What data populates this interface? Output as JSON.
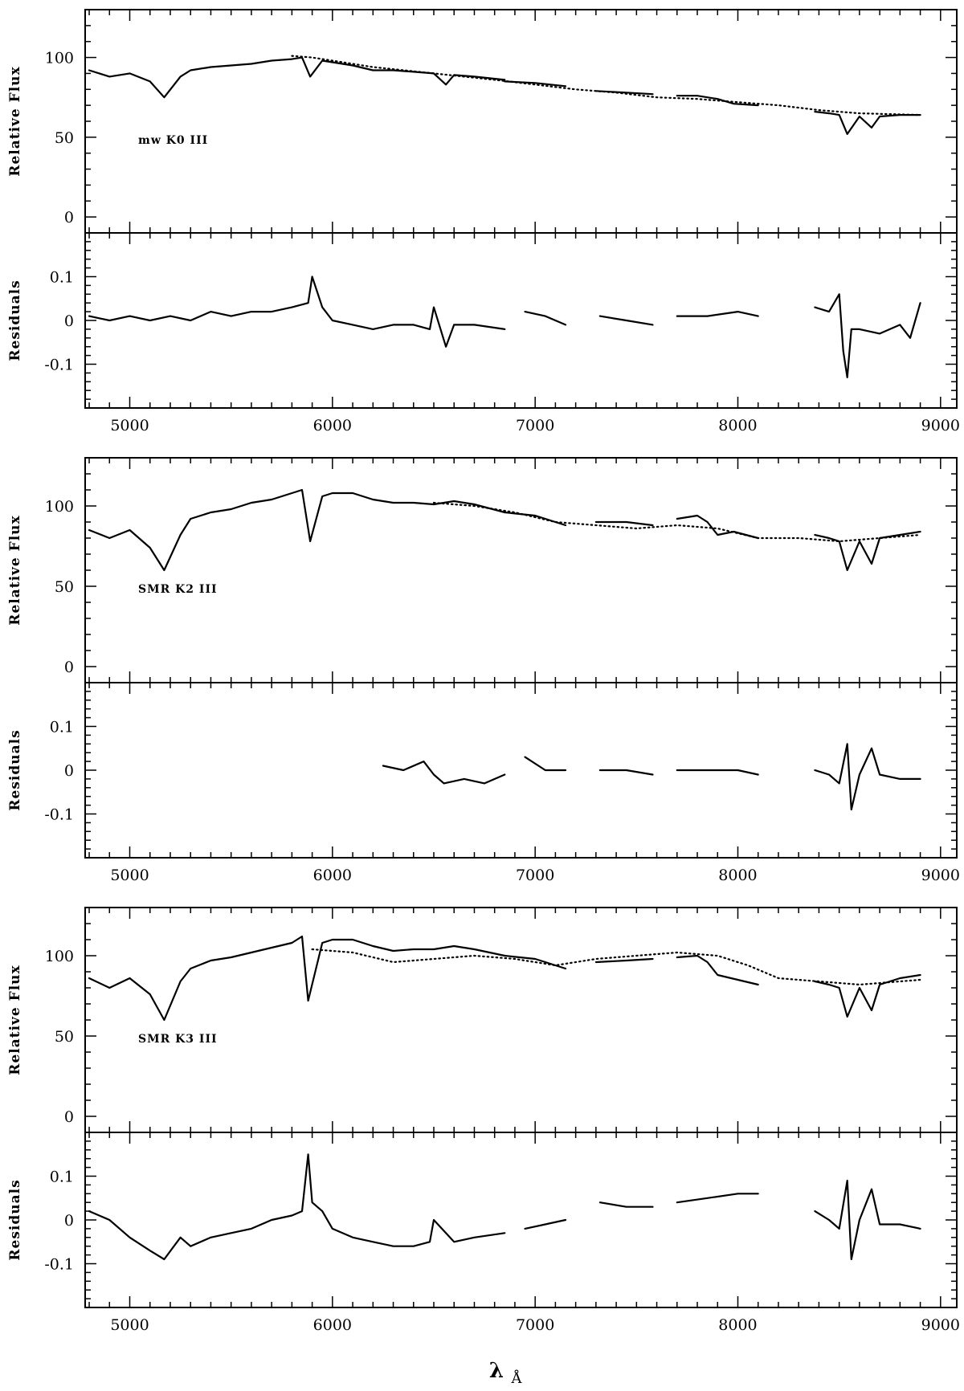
{
  "chart_data": [
    {
      "type": "line",
      "panel": "flux",
      "star_label": "mw K0 III",
      "ylabel": "Relative Flux",
      "xlim": [
        4780,
        9080
      ],
      "ylim": [
        -10,
        130
      ],
      "yticks": [
        "0",
        "50",
        "100"
      ],
      "series": [
        {
          "style": "solid",
          "segments": [
            {
              "x": [
                4800,
                4900,
                5000,
                5100,
                5170,
                5250,
                5300,
                5400,
                5500,
                5600,
                5700,
                5800,
                5850,
                5890,
                5950,
                6000,
                6100,
                6200,
                6300,
                6400,
                6500,
                6560,
                6600,
                6700,
                6850
              ],
              "y": [
                92,
                88,
                90,
                85,
                75,
                88,
                92,
                94,
                95,
                96,
                98,
                99,
                100,
                88,
                98,
                97,
                95,
                92,
                92,
                91,
                90,
                83,
                89,
                88,
                86
              ]
            },
            {
              "x": [
                6850,
                7000,
                7150
              ],
              "y": [
                85,
                84,
                82
              ]
            },
            {
              "x": [
                7300,
                7450,
                7580
              ],
              "y": [
                79,
                78,
                77
              ]
            },
            {
              "x": [
                7700,
                7800,
                7900,
                7980,
                8100
              ],
              "y": [
                76,
                76,
                74,
                71,
                70
              ]
            },
            {
              "x": [
                8380,
                8450,
                8500,
                8540,
                8600,
                8660,
                8700,
                8800,
                8900
              ],
              "y": [
                66,
                65,
                64,
                52,
                63,
                56,
                63,
                64,
                64
              ]
            }
          ]
        },
        {
          "style": "dotted",
          "segments": [
            {
              "x": [
                5800,
                5900,
                6000,
                6200,
                6500,
                6800,
                7000,
                7200,
                7400,
                7600,
                7800,
                8000,
                8200,
                8400,
                8600,
                8900
              ],
              "y": [
                101,
                100,
                98,
                94,
                90,
                86,
                83,
                80,
                78,
                75,
                74,
                72,
                70,
                67,
                65,
                64
              ]
            }
          ]
        }
      ]
    },
    {
      "type": "line",
      "panel": "residuals",
      "ylabel": "Residuals",
      "xlim": [
        4780,
        9080
      ],
      "ylim": [
        -0.2,
        0.2
      ],
      "yticks": [
        "-0.1",
        "0",
        "0.1"
      ],
      "xticks": [
        "5000",
        "6000",
        "7000",
        "8000",
        "9000"
      ],
      "series": [
        {
          "style": "solid",
          "segments": [
            {
              "x": [
                4800,
                4900,
                5000,
                5100,
                5200,
                5300,
                5400,
                5500,
                5600,
                5700,
                5800,
                5880,
                5900,
                5950,
                6000,
                6100,
                6200,
                6300,
                6400,
                6480,
                6500,
                6560,
                6600,
                6700,
                6850
              ],
              "y": [
                0.01,
                0.0,
                0.01,
                0.0,
                0.01,
                0.0,
                0.02,
                0.01,
                0.02,
                0.02,
                0.03,
                0.04,
                0.1,
                0.03,
                0.0,
                -0.01,
                -0.02,
                -0.01,
                -0.01,
                -0.02,
                0.03,
                -0.06,
                -0.01,
                -0.01,
                -0.02
              ]
            },
            {
              "x": [
                6950,
                7050,
                7150
              ],
              "y": [
                0.02,
                0.01,
                -0.01
              ]
            },
            {
              "x": [
                7320,
                7450,
                7580
              ],
              "y": [
                0.01,
                0.0,
                -0.01
              ]
            },
            {
              "x": [
                7700,
                7850,
                8000,
                8100
              ],
              "y": [
                0.01,
                0.01,
                0.02,
                0.01
              ]
            },
            {
              "x": [
                8380,
                8450,
                8500,
                8520,
                8540,
                8560,
                8600,
                8700,
                8800,
                8850,
                8900
              ],
              "y": [
                0.03,
                0.02,
                0.06,
                -0.07,
                -0.13,
                -0.02,
                -0.02,
                -0.03,
                -0.01,
                -0.04,
                0.04
              ]
            }
          ]
        }
      ]
    },
    {
      "type": "line",
      "panel": "flux",
      "star_label": "SMR K2 III",
      "ylabel": "Relative Flux",
      "xlim": [
        4780,
        9080
      ],
      "ylim": [
        -10,
        130
      ],
      "yticks": [
        "0",
        "50",
        "100"
      ],
      "series": [
        {
          "style": "solid",
          "segments": [
            {
              "x": [
                4800,
                4900,
                5000,
                5100,
                5170,
                5250,
                5300,
                5400,
                5500,
                5600,
                5700,
                5800,
                5850,
                5890,
                5950,
                6000,
                6100,
                6200,
                6300,
                6400,
                6500,
                6600,
                6700,
                6850
              ],
              "y": [
                85,
                80,
                85,
                74,
                60,
                82,
                92,
                96,
                98,
                102,
                104,
                108,
                110,
                78,
                106,
                108,
                108,
                104,
                102,
                102,
                101,
                103,
                101,
                96
              ]
            },
            {
              "x": [
                6850,
                7000,
                7150
              ],
              "y": [
                96,
                94,
                88
              ]
            },
            {
              "x": [
                7300,
                7450,
                7580
              ],
              "y": [
                90,
                90,
                88
              ]
            },
            {
              "x": [
                7700,
                7800,
                7850,
                7900,
                7980,
                8100
              ],
              "y": [
                92,
                94,
                90,
                82,
                84,
                80
              ]
            },
            {
              "x": [
                8380,
                8450,
                8500,
                8540,
                8600,
                8660,
                8700,
                8800,
                8900
              ],
              "y": [
                82,
                80,
                78,
                60,
                78,
                64,
                80,
                82,
                84
              ]
            }
          ]
        },
        {
          "style": "dotted",
          "segments": [
            {
              "x": [
                6500,
                6700,
                6900,
                7100,
                7300,
                7500,
                7700,
                7900,
                8100,
                8300,
                8500,
                8700,
                8900
              ],
              "y": [
                102,
                100,
                96,
                90,
                88,
                86,
                88,
                86,
                80,
                80,
                78,
                80,
                82
              ]
            }
          ]
        }
      ]
    },
    {
      "type": "line",
      "panel": "residuals",
      "ylabel": "Residuals",
      "xlim": [
        4780,
        9080
      ],
      "ylim": [
        -0.2,
        0.2
      ],
      "yticks": [
        "-0.1",
        "0",
        "0.1"
      ],
      "xticks": [
        "5000",
        "6000",
        "7000",
        "8000",
        "9000"
      ],
      "series": [
        {
          "style": "solid",
          "segments": [
            {
              "x": [
                6250,
                6350,
                6450,
                6500,
                6550,
                6650,
                6750,
                6850
              ],
              "y": [
                0.01,
                0.0,
                0.02,
                -0.01,
                -0.03,
                -0.02,
                -0.03,
                -0.01
              ]
            },
            {
              "x": [
                6950,
                7050,
                7150
              ],
              "y": [
                0.03,
                0.0,
                0.0
              ]
            },
            {
              "x": [
                7320,
                7450,
                7580
              ],
              "y": [
                0.0,
                0.0,
                -0.01
              ]
            },
            {
              "x": [
                7700,
                7850,
                8000,
                8100
              ],
              "y": [
                0.0,
                0.0,
                0.0,
                -0.01
              ]
            },
            {
              "x": [
                8380,
                8450,
                8500,
                8540,
                8560,
                8600,
                8660,
                8700,
                8800,
                8900
              ],
              "y": [
                0.0,
                -0.01,
                -0.03,
                0.06,
                -0.09,
                -0.01,
                0.05,
                -0.01,
                -0.02,
                -0.02
              ]
            }
          ]
        }
      ]
    },
    {
      "type": "line",
      "panel": "flux",
      "star_label": "SMR K3 III",
      "ylabel": "Relative Flux",
      "xlim": [
        4780,
        9080
      ],
      "ylim": [
        -10,
        130
      ],
      "yticks": [
        "0",
        "50",
        "100"
      ],
      "series": [
        {
          "style": "solid",
          "segments": [
            {
              "x": [
                4800,
                4900,
                5000,
                5100,
                5170,
                5250,
                5300,
                5400,
                5500,
                5600,
                5700,
                5800,
                5850,
                5880,
                5950,
                6000,
                6100,
                6200,
                6300,
                6400,
                6500,
                6600,
                6700,
                6850
              ],
              "y": [
                86,
                80,
                86,
                76,
                60,
                84,
                92,
                97,
                99,
                102,
                105,
                108,
                112,
                72,
                108,
                110,
                110,
                106,
                103,
                104,
                104,
                106,
                104,
                100
              ]
            },
            {
              "x": [
                6850,
                7000,
                7150
              ],
              "y": [
                100,
                98,
                92
              ]
            },
            {
              "x": [
                7300,
                7450,
                7580
              ],
              "y": [
                96,
                97,
                98
              ]
            },
            {
              "x": [
                7700,
                7800,
                7850,
                7900,
                8000,
                8100
              ],
              "y": [
                99,
                100,
                96,
                88,
                85,
                82
              ]
            },
            {
              "x": [
                8380,
                8450,
                8500,
                8540,
                8600,
                8660,
                8700,
                8800,
                8900
              ],
              "y": [
                84,
                82,
                80,
                62,
                80,
                66,
                82,
                86,
                88
              ]
            }
          ]
        },
        {
          "style": "dotted",
          "segments": [
            {
              "x": [
                5900,
                6100,
                6300,
                6500,
                6700,
                6900,
                7100,
                7300,
                7500,
                7700,
                7900,
                8050,
                8200,
                8400,
                8600,
                8800,
                8900
              ],
              "y": [
                104,
                102,
                96,
                98,
                100,
                98,
                94,
                98,
                100,
                102,
                100,
                94,
                86,
                84,
                82,
                84,
                85
              ]
            }
          ]
        }
      ]
    },
    {
      "type": "line",
      "panel": "residuals",
      "ylabel": "Residuals",
      "xlim": [
        4780,
        9080
      ],
      "ylim": [
        -0.2,
        0.2
      ],
      "yticks": [
        "-0.1",
        "0",
        "0.1"
      ],
      "xticks": [
        "5000",
        "6000",
        "7000",
        "8000",
        "9000"
      ],
      "series": [
        {
          "style": "solid",
          "segments": [
            {
              "x": [
                4800,
                4900,
                5000,
                5100,
                5170,
                5250,
                5300,
                5400,
                5500,
                5600,
                5700,
                5800,
                5850,
                5880,
                5900,
                5950,
                6000,
                6100,
                6200,
                6300,
                6400,
                6480,
                6500,
                6600,
                6700,
                6850
              ],
              "y": [
                0.02,
                0.0,
                -0.04,
                -0.07,
                -0.09,
                -0.04,
                -0.06,
                -0.04,
                -0.03,
                -0.02,
                0.0,
                0.01,
                0.02,
                0.15,
                0.04,
                0.02,
                -0.02,
                -0.04,
                -0.05,
                -0.06,
                -0.06,
                -0.05,
                0.0,
                -0.05,
                -0.04,
                -0.03
              ]
            },
            {
              "x": [
                6950,
                7050,
                7150
              ],
              "y": [
                -0.02,
                -0.01,
                0.0
              ]
            },
            {
              "x": [
                7320,
                7450,
                7580
              ],
              "y": [
                0.04,
                0.03,
                0.03
              ]
            },
            {
              "x": [
                7700,
                7850,
                8000,
                8100
              ],
              "y": [
                0.04,
                0.05,
                0.06,
                0.06
              ]
            },
            {
              "x": [
                8380,
                8450,
                8500,
                8540,
                8560,
                8600,
                8660,
                8700,
                8800,
                8900
              ],
              "y": [
                0.02,
                0.0,
                -0.02,
                0.09,
                -0.09,
                0.0,
                0.07,
                -0.01,
                -0.01,
                -0.02
              ]
            }
          ]
        }
      ]
    }
  ],
  "xlabel": "λ",
  "xlabel_unit": "Å"
}
